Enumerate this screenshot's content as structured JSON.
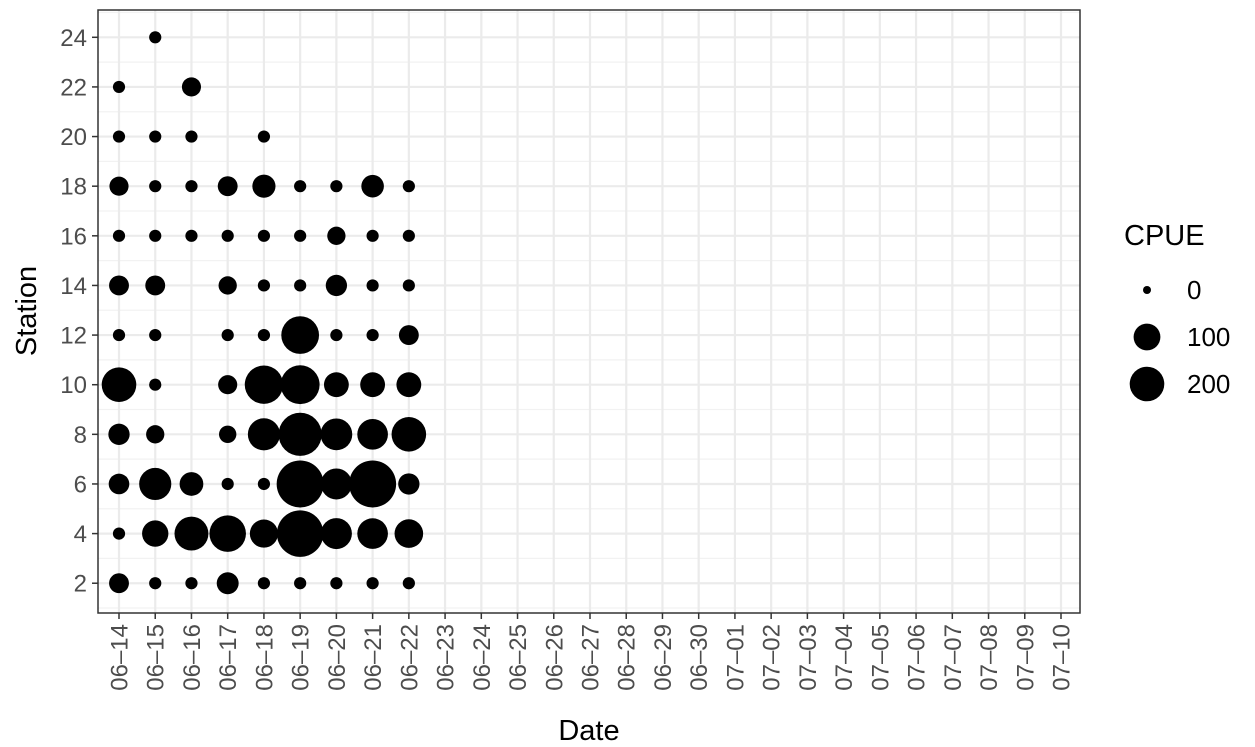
{
  "chart_data": {
    "type": "scatter",
    "xlabel": "Date",
    "ylabel": "Station",
    "x_categories": [
      "06–14",
      "06–15",
      "06–16",
      "06–17",
      "06–18",
      "06–19",
      "06–20",
      "06–21",
      "06–22",
      "06–23",
      "06–24",
      "06–25",
      "06–26",
      "06–27",
      "06–28",
      "06–29",
      "06–30",
      "07–01",
      "07–02",
      "07–03",
      "07–04",
      "07–05",
      "07–06",
      "07–07",
      "07–08",
      "07–09",
      "07–10"
    ],
    "yticks": [
      2,
      4,
      6,
      8,
      10,
      12,
      14,
      16,
      18,
      20,
      22,
      24
    ],
    "ylim": [
      0.8,
      25.1
    ],
    "grid": true,
    "size_legend": {
      "title": "CPUE",
      "breaks": [
        0,
        100,
        200
      ],
      "labels": [
        "0",
        "100",
        "200"
      ]
    },
    "point_color": "#000000",
    "points": [
      {
        "x": "06–14",
        "y": 2,
        "cpue": 40
      },
      {
        "x": "06–14",
        "y": 4,
        "cpue": 5
      },
      {
        "x": "06–14",
        "y": 6,
        "cpue": 45
      },
      {
        "x": "06–14",
        "y": 8,
        "cpue": 50
      },
      {
        "x": "06–14",
        "y": 10,
        "cpue": 200
      },
      {
        "x": "06–14",
        "y": 12,
        "cpue": 5
      },
      {
        "x": "06–14",
        "y": 14,
        "cpue": 40
      },
      {
        "x": "06–14",
        "y": 16,
        "cpue": 5
      },
      {
        "x": "06–14",
        "y": 18,
        "cpue": 35
      },
      {
        "x": "06–14",
        "y": 20,
        "cpue": 5
      },
      {
        "x": "06–14",
        "y": 22,
        "cpue": 5
      },
      {
        "x": "06–15",
        "y": 2,
        "cpue": 5
      },
      {
        "x": "06–15",
        "y": 4,
        "cpue": 95
      },
      {
        "x": "06–15",
        "y": 6,
        "cpue": 165
      },
      {
        "x": "06–15",
        "y": 8,
        "cpue": 30
      },
      {
        "x": "06–15",
        "y": 10,
        "cpue": 5
      },
      {
        "x": "06–15",
        "y": 12,
        "cpue": 5
      },
      {
        "x": "06–15",
        "y": 14,
        "cpue": 40
      },
      {
        "x": "06–15",
        "y": 16,
        "cpue": 5
      },
      {
        "x": "06–15",
        "y": 18,
        "cpue": 5
      },
      {
        "x": "06–15",
        "y": 20,
        "cpue": 5
      },
      {
        "x": "06–15",
        "y": 24,
        "cpue": 5
      },
      {
        "x": "06–16",
        "y": 2,
        "cpue": 5
      },
      {
        "x": "06–16",
        "y": 4,
        "cpue": 190
      },
      {
        "x": "06–16",
        "y": 6,
        "cpue": 70
      },
      {
        "x": "06–16",
        "y": 16,
        "cpue": 5
      },
      {
        "x": "06–16",
        "y": 18,
        "cpue": 5
      },
      {
        "x": "06–16",
        "y": 20,
        "cpue": 5
      },
      {
        "x": "06–16",
        "y": 22,
        "cpue": 35
      },
      {
        "x": "06–17",
        "y": 2,
        "cpue": 55
      },
      {
        "x": "06–17",
        "y": 4,
        "cpue": 230
      },
      {
        "x": "06–17",
        "y": 6,
        "cpue": 5
      },
      {
        "x": "06–17",
        "y": 8,
        "cpue": 25
      },
      {
        "x": "06–17",
        "y": 10,
        "cpue": 35
      },
      {
        "x": "06–17",
        "y": 12,
        "cpue": 5
      },
      {
        "x": "06–17",
        "y": 14,
        "cpue": 30
      },
      {
        "x": "06–17",
        "y": 16,
        "cpue": 5
      },
      {
        "x": "06–17",
        "y": 18,
        "cpue": 40
      },
      {
        "x": "06–18",
        "y": 2,
        "cpue": 5
      },
      {
        "x": "06–18",
        "y": 4,
        "cpue": 115
      },
      {
        "x": "06–18",
        "y": 6,
        "cpue": 5
      },
      {
        "x": "06–18",
        "y": 8,
        "cpue": 165
      },
      {
        "x": "06–18",
        "y": 10,
        "cpue": 260
      },
      {
        "x": "06–18",
        "y": 12,
        "cpue": 5
      },
      {
        "x": "06–18",
        "y": 14,
        "cpue": 5
      },
      {
        "x": "06–18",
        "y": 16,
        "cpue": 5
      },
      {
        "x": "06–18",
        "y": 18,
        "cpue": 65
      },
      {
        "x": "06–18",
        "y": 20,
        "cpue": 5
      },
      {
        "x": "06–19",
        "y": 2,
        "cpue": 5
      },
      {
        "x": "06–19",
        "y": 4,
        "cpue": 420
      },
      {
        "x": "06–19",
        "y": 6,
        "cpue": 430
      },
      {
        "x": "06–19",
        "y": 8,
        "cpue": 350
      },
      {
        "x": "06–19",
        "y": 10,
        "cpue": 270
      },
      {
        "x": "06–19",
        "y": 12,
        "cpue": 250
      },
      {
        "x": "06–19",
        "y": 14,
        "cpue": 5
      },
      {
        "x": "06–19",
        "y": 16,
        "cpue": 5
      },
      {
        "x": "06–19",
        "y": 18,
        "cpue": 5
      },
      {
        "x": "06–20",
        "y": 2,
        "cpue": 5
      },
      {
        "x": "06–20",
        "y": 4,
        "cpue": 150
      },
      {
        "x": "06–20",
        "y": 6,
        "cpue": 150
      },
      {
        "x": "06–20",
        "y": 8,
        "cpue": 160
      },
      {
        "x": "06–20",
        "y": 10,
        "cpue": 80
      },
      {
        "x": "06–20",
        "y": 12,
        "cpue": 5
      },
      {
        "x": "06–20",
        "y": 14,
        "cpue": 50
      },
      {
        "x": "06–20",
        "y": 16,
        "cpue": 30
      },
      {
        "x": "06–20",
        "y": 18,
        "cpue": 5
      },
      {
        "x": "06–21",
        "y": 2,
        "cpue": 5
      },
      {
        "x": "06–21",
        "y": 4,
        "cpue": 145
      },
      {
        "x": "06–21",
        "y": 6,
        "cpue": 430
      },
      {
        "x": "06–21",
        "y": 8,
        "cpue": 145
      },
      {
        "x": "06–21",
        "y": 10,
        "cpue": 80
      },
      {
        "x": "06–21",
        "y": 12,
        "cpue": 5
      },
      {
        "x": "06–21",
        "y": 14,
        "cpue": 5
      },
      {
        "x": "06–21",
        "y": 16,
        "cpue": 5
      },
      {
        "x": "06–21",
        "y": 18,
        "cpue": 60
      },
      {
        "x": "06–22",
        "y": 2,
        "cpue": 5
      },
      {
        "x": "06–22",
        "y": 4,
        "cpue": 120
      },
      {
        "x": "06–22",
        "y": 6,
        "cpue": 50
      },
      {
        "x": "06–22",
        "y": 8,
        "cpue": 200
      },
      {
        "x": "06–22",
        "y": 10,
        "cpue": 80
      },
      {
        "x": "06–22",
        "y": 12,
        "cpue": 40
      },
      {
        "x": "06–22",
        "y": 14,
        "cpue": 5
      },
      {
        "x": "06–22",
        "y": 16,
        "cpue": 5
      },
      {
        "x": "06–22",
        "y": 18,
        "cpue": 5
      }
    ]
  }
}
